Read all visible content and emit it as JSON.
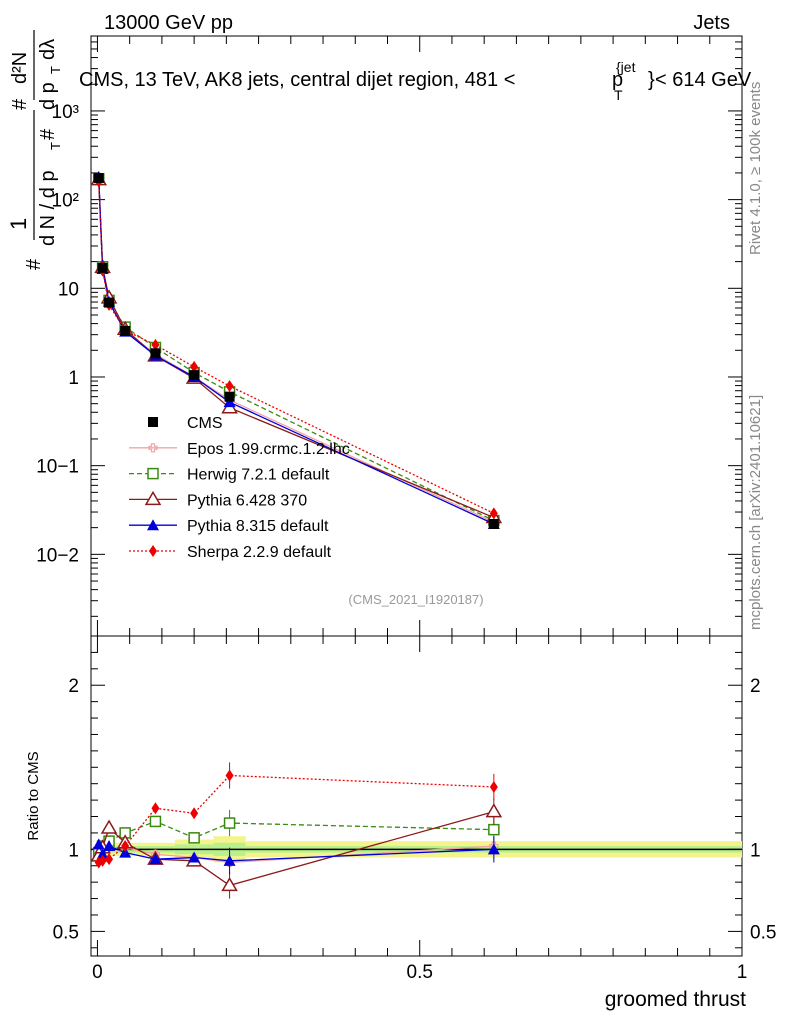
{
  "header": {
    "left_label": "13000 GeV pp",
    "right_label": "Jets",
    "title_prefix": "CMS, 13 TeV, AK8 jets, central dijet region, 481 <",
    "title_p": "p",
    "title_sub": "T",
    "title_sup": "{jet",
    "title_sup_close": "}",
    "title_suffix": "< 614 GeV"
  },
  "side_labels": {
    "rivet": "Rivet 4.1.0, ≥ 100k events",
    "mcplots": "mcplots.cern.ch [arXiv:2401.10621]"
  },
  "ylabel_main": {
    "part1": "#",
    "part2": "1",
    "part3": "d N / d p",
    "part4": "T",
    "part5": "#",
    "part6": "d²N",
    "part7": "#",
    "part8": "d p",
    "part9": "T",
    "part10": "dλ"
  },
  "watermark": "(CMS_2021_I1920187)",
  "colors": {
    "cms": "#000000",
    "epos": "#f4a3a3",
    "herwig": "#3a8a10",
    "pythia6": "#8b1a1a",
    "pythia8": "#0000dd",
    "sherpa": "#ee0000",
    "band_green": "#b8f08c",
    "band_yellow": "#f4f48c"
  },
  "chart_data": [
    {
      "type": "scatter",
      "panel": "main",
      "yscale": "log",
      "xlim": [
        -0.01,
        1.0
      ],
      "ylim": [
        0.0012,
        7000
      ],
      "ytick_labels": [
        "10−2",
        "10−1",
        "1",
        "10",
        "10²",
        "10³"
      ],
      "ytick_values": [
        0.01,
        0.1,
        1,
        10,
        100,
        1000
      ],
      "x": [
        0.002,
        0.008,
        0.018,
        0.043,
        0.09,
        0.15,
        0.205,
        0.615
      ],
      "series": [
        {
          "name": "CMS",
          "values": [
            175,
            17,
            6.9,
            3.3,
            1.85,
            1.05,
            0.6,
            0.022
          ]
        },
        {
          "name": "Epos 1.99.crmc.1.2.lhc",
          "values": [
            172,
            16.9,
            7.0,
            3.35,
            1.8,
            1.0,
            0.55,
            0.023
          ]
        },
        {
          "name": "Herwig 7.2.1 default",
          "values": [
            172,
            17.5,
            7.3,
            3.65,
            2.15,
            1.12,
            0.68,
            0.024
          ]
        },
        {
          "name": "Pythia 6.428 370",
          "values": [
            168,
            17.2,
            7.8,
            3.45,
            1.73,
            0.97,
            0.45,
            0.026
          ]
        },
        {
          "name": "Pythia 8.315 default",
          "values": [
            180,
            16.5,
            7.0,
            3.25,
            1.74,
            1.0,
            0.52,
            0.022
          ]
        },
        {
          "name": "Sherpa 2.2.9 default",
          "values": [
            160,
            15.8,
            6.5,
            3.35,
            2.3,
            1.3,
            0.79,
            0.029
          ]
        }
      ]
    },
    {
      "type": "scatter",
      "panel": "ratio",
      "ylabel": "Ratio to CMS",
      "xlabel": "groomed thrust",
      "xlim": [
        -0.01,
        1.0
      ],
      "ylim": [
        0.35,
        2.3
      ],
      "ytick_labels": [
        "0.5",
        "1",
        "2"
      ],
      "ytick_values": [
        0.5,
        1,
        2
      ],
      "xtick_labels": [
        "0",
        "0.5",
        "1"
      ],
      "xtick_values": [
        0,
        0.5,
        1
      ],
      "x": [
        0.002,
        0.008,
        0.018,
        0.043,
        0.09,
        0.15,
        0.205,
        0.615
      ],
      "band_x_edges": [
        0,
        0.005,
        0.012,
        0.025,
        0.06,
        0.12,
        0.18,
        0.23,
        1.0
      ],
      "band_inner": [
        0.02,
        0.02,
        0.02,
        0.02,
        0.02,
        0.03,
        0.04,
        0.02
      ],
      "band_outer": [
        0.04,
        0.04,
        0.04,
        0.04,
        0.04,
        0.06,
        0.08,
        0.05
      ],
      "series": [
        {
          "name": "Epos 1.99.crmc.1.2.lhc",
          "values": [
            0.98,
            0.99,
            1.01,
            1.01,
            0.97,
            0.95,
            0.92,
            1.02
          ]
        },
        {
          "name": "Herwig 7.2.1 default",
          "values": [
            0.98,
            1.02,
            1.05,
            1.1,
            1.17,
            1.07,
            1.16,
            1.12
          ]
        },
        {
          "name": "Pythia 6.428 370",
          "values": [
            0.96,
            1.01,
            1.13,
            1.04,
            0.94,
            0.93,
            0.78,
            1.23
          ]
        },
        {
          "name": "Pythia 8.315 default",
          "values": [
            1.03,
            0.97,
            1.02,
            0.98,
            0.94,
            0.95,
            0.93,
            1.0
          ]
        },
        {
          "name": "Sherpa 2.2.9 default",
          "values": [
            0.92,
            0.93,
            0.94,
            1.02,
            1.25,
            1.22,
            1.45,
            1.38
          ]
        }
      ]
    }
  ]
}
